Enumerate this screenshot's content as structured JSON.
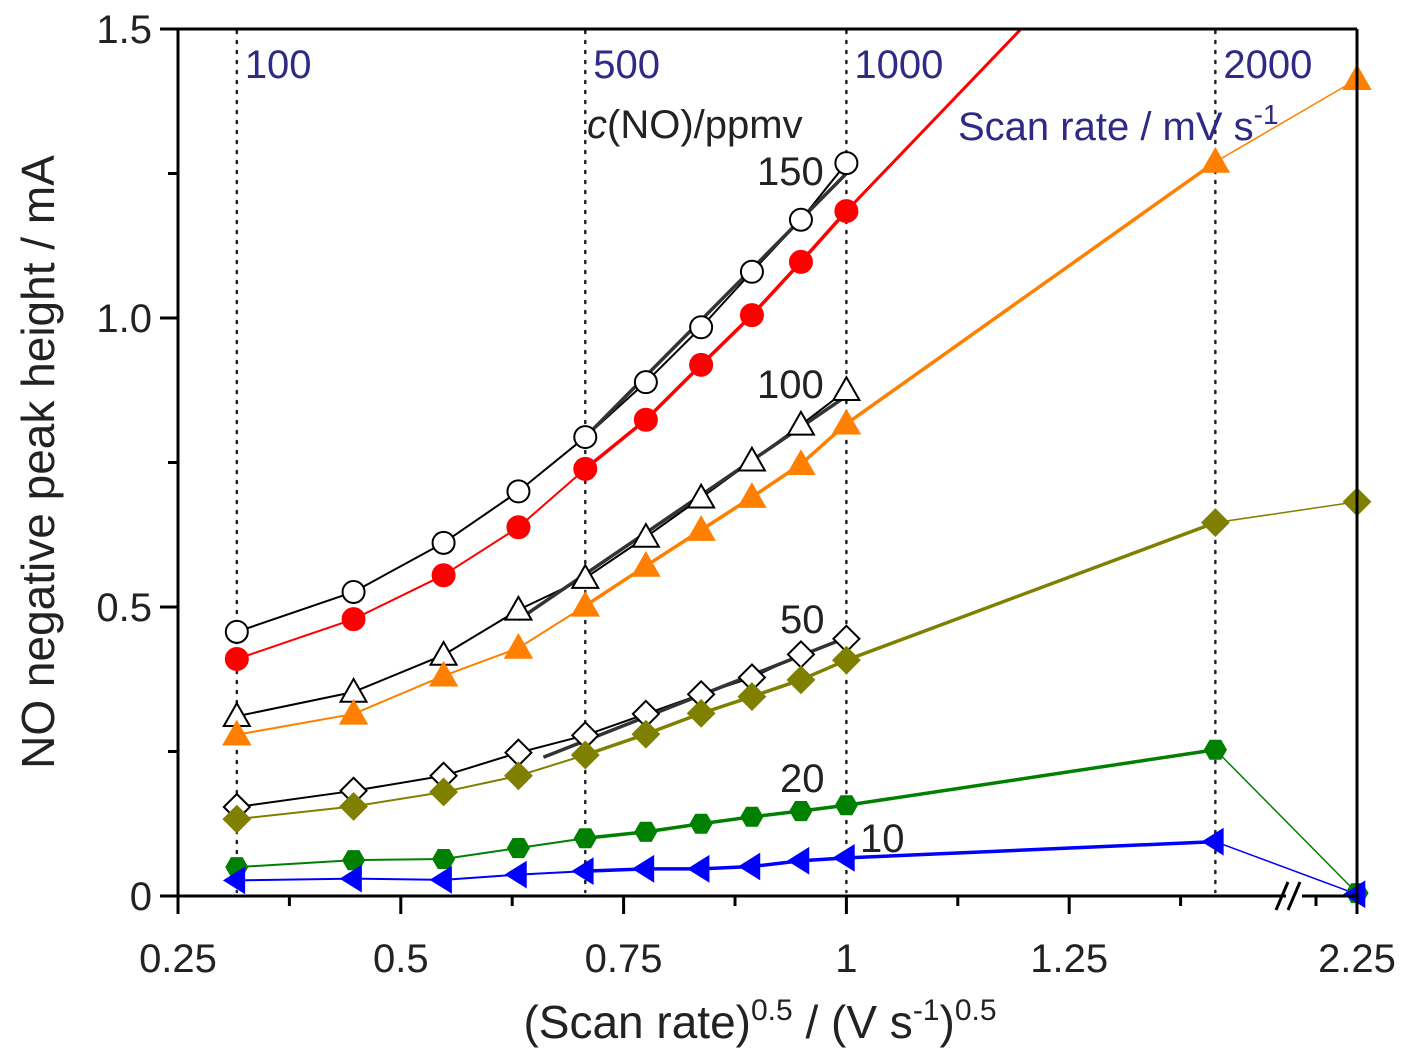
{
  "chart_data": {
    "type": "line",
    "title": "",
    "xlabel": "(Scan rate)^0.5 / (V s^-1)^0.5",
    "xlabel_parts": {
      "main1": "(Scan rate)",
      "sup1": "0.5",
      "main2": " / (V s",
      "sup2": "-1",
      "main3": ")",
      "sup3": "0.5"
    },
    "ylabel": "NO negative peak height / mA",
    "xlim": [
      0.25,
      2.25
    ],
    "x_axis_break": "between 1.5 and ~2.2",
    "ylim": [
      0,
      1.5
    ],
    "x_ticks": [
      "0.25",
      "0.5",
      "0.75",
      "1",
      "1.25",
      "2.25"
    ],
    "y_ticks": [
      "0",
      "0.5",
      "1.0",
      "1.5"
    ],
    "grid": false,
    "vlines": [
      {
        "x": 0.316,
        "label": "100"
      },
      {
        "x": 0.707,
        "label": "500"
      },
      {
        "x": 1.0,
        "label": "1000"
      },
      {
        "x": 1.414,
        "label": "2000"
      }
    ],
    "vline_unit_label": {
      "main": "Scan rate / mV s",
      "sup": "-1"
    },
    "series_group_label": {
      "italic": "c",
      "rest": "(NO)/ppmv"
    },
    "x": [
      0.316,
      0.447,
      0.548,
      0.632,
      0.707,
      0.775,
      0.837,
      0.894,
      0.949,
      1.0,
      1.414,
      2.25
    ],
    "series": [
      {
        "name": "150 ppmv (open)",
        "label": "150",
        "marker": "circle-open",
        "color": "#000000",
        "values": [
          0.457,
          0.526,
          0.611,
          0.7,
          0.794,
          0.889,
          0.984,
          1.08,
          1.17,
          1.268,
          null,
          null
        ]
      },
      {
        "name": "150 ppmv (filled)",
        "label": "",
        "marker": "circle",
        "color": "#ff0000",
        "values": [
          0.41,
          0.479,
          0.555,
          0.638,
          0.739,
          0.824,
          0.919,
          1.005,
          1.097,
          1.185,
          null,
          null
        ],
        "extends_to": [
          1.196,
          1.5
        ]
      },
      {
        "name": "100 ppmv (open)",
        "label": "100",
        "marker": "triangle-open",
        "color": "#000000",
        "values": [
          0.311,
          0.353,
          0.417,
          0.495,
          0.55,
          0.621,
          0.689,
          0.753,
          0.815,
          0.875,
          null,
          null
        ]
      },
      {
        "name": "100 ppmv (filled)",
        "label": "",
        "marker": "triangle",
        "color": "#ff8000",
        "values": [
          0.279,
          0.315,
          0.381,
          0.429,
          0.502,
          0.571,
          0.633,
          0.69,
          0.747,
          0.817,
          1.27,
          1.413
        ]
      },
      {
        "name": "50 ppmv (open)",
        "label": "50",
        "marker": "diamond-open",
        "color": "#000000",
        "values": [
          0.154,
          0.182,
          0.208,
          0.248,
          0.278,
          0.315,
          0.349,
          0.378,
          0.418,
          0.445,
          null,
          null
        ]
      },
      {
        "name": "50 ppmv (filled)",
        "label": "",
        "marker": "diamond",
        "color": "#808000",
        "values": [
          0.133,
          0.155,
          0.18,
          0.208,
          0.244,
          0.28,
          0.316,
          0.345,
          0.374,
          0.408,
          0.646,
          0.682
        ]
      },
      {
        "name": "20 ppmv",
        "label": "20",
        "marker": "hexagon",
        "color": "#008000",
        "values": [
          0.05,
          0.062,
          0.064,
          0.083,
          0.1,
          0.111,
          0.125,
          0.137,
          0.147,
          0.157,
          0.253,
          0.005
        ]
      },
      {
        "name": "10 ppmv",
        "label": "10",
        "marker": "triangle-left",
        "color": "#0000ff",
        "values": [
          0.027,
          0.03,
          0.028,
          0.037,
          0.043,
          0.047,
          0.047,
          0.051,
          0.061,
          0.066,
          0.094,
          0.003
        ]
      }
    ],
    "fit_lines": [
      {
        "series": "150 ppmv (open)",
        "from": [
          0.707,
          0.794
        ],
        "to": [
          1.0,
          1.25
        ]
      },
      {
        "series": "100 ppmv (open)",
        "from": [
          0.632,
          0.478
        ],
        "to": [
          1.0,
          0.865
        ]
      },
      {
        "series": "50 ppmv (open)",
        "from": [
          0.66,
          0.24
        ],
        "to": [
          1.0,
          0.447
        ]
      }
    ]
  }
}
